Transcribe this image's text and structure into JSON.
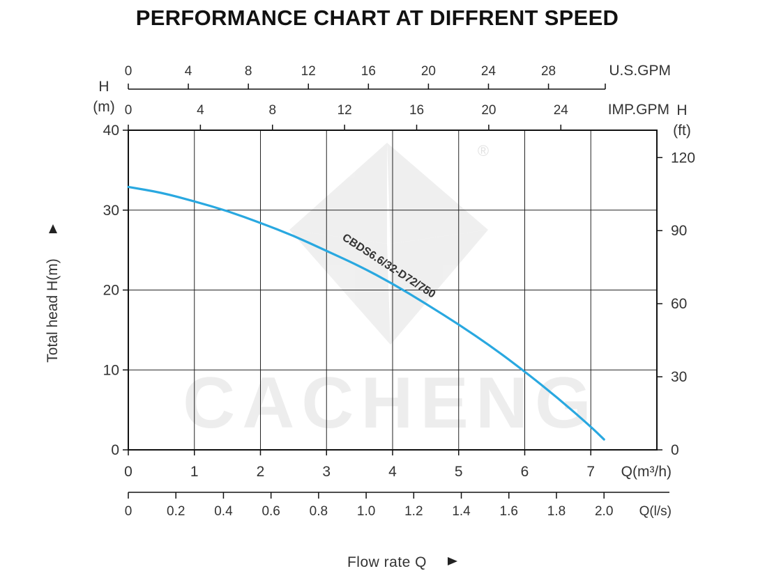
{
  "chart_data": {
    "type": "line",
    "title": "PERFORMANCE CHART AT DIFFRENT SPEED",
    "xlabel": "Flow rate Q",
    "ylabel": "Total head H(m)",
    "xlim": [
      0,
      8
    ],
    "ylim": [
      0,
      40
    ],
    "grid": true,
    "x_unit_label": "Q(m³/h)",
    "x_ticks": [
      "0",
      "1",
      "2",
      "3",
      "4",
      "5",
      "6",
      "7"
    ],
    "y_left_unit_label": [
      "H",
      "(m)"
    ],
    "y_left_ticks": [
      "0",
      "10",
      "20",
      "30",
      "40"
    ],
    "y_right": {
      "unit_label": [
        "H",
        "(ft)"
      ],
      "ticks": [
        "0",
        "30",
        "60",
        "90",
        "120"
      ]
    },
    "x_lps": {
      "unit_label": "Q(l/s)",
      "ticks": [
        "0",
        "0.2",
        "0.4",
        "0.6",
        "0.8",
        "1.0",
        "1.2",
        "1.4",
        "1.6",
        "1.8",
        "2.0"
      ]
    },
    "x_usgpm": {
      "unit_label": "U.S.GPM",
      "ticks": [
        "0",
        "4",
        "8",
        "12",
        "16",
        "20",
        "24",
        "28"
      ]
    },
    "x_impgpm": {
      "unit_label": "IMP.GPM",
      "ticks": [
        "0",
        "4",
        "8",
        "12",
        "16",
        "20",
        "24"
      ]
    },
    "series": [
      {
        "name": "CBDS6.6/32-D72/750",
        "color": "#29a8e0",
        "x": [
          0,
          0.5,
          1,
          1.5,
          2,
          2.5,
          3,
          3.5,
          4,
          4.5,
          5,
          5.5,
          6,
          6.5,
          7,
          7.2
        ],
        "y": [
          32.9,
          32.2,
          31.1,
          29.9,
          28.4,
          26.8,
          24.9,
          23.0,
          20.8,
          18.3,
          15.7,
          12.9,
          9.8,
          6.5,
          2.9,
          1.3
        ]
      }
    ],
    "watermark": "CACHENG"
  }
}
